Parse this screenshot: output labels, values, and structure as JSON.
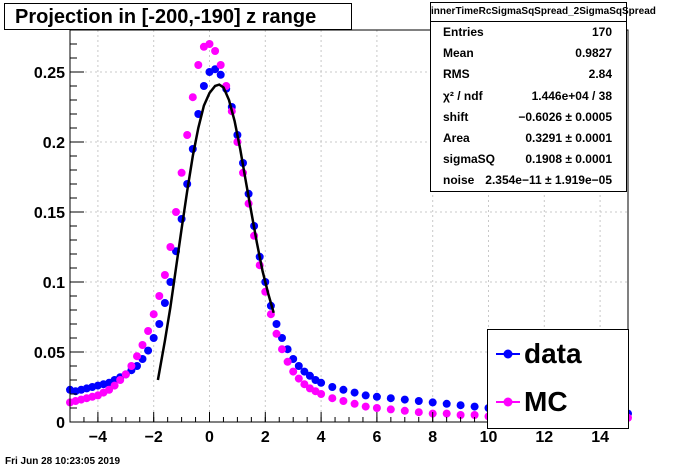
{
  "title": "Projection in [-200,-190] z range",
  "footer": "Fri Jun 28 10:23:05 2019",
  "stats": {
    "title": "innerTimeRcSigmaSqSpread_2SigmaSqSpread",
    "rows": [
      {
        "label": "Entries",
        "value": "170"
      },
      {
        "label": "Mean",
        "value": "0.9827"
      },
      {
        "label": "RMS",
        "value": "2.84"
      },
      {
        "label": "χ² / ndf",
        "value": "1.446e+04 / 38"
      },
      {
        "label": "shift",
        "value": "−0.6026 ± 0.0005"
      },
      {
        "label": "Area",
        "value": "0.3291 ± 0.0001"
      },
      {
        "label": "sigmaSQ",
        "value": "0.1908 ± 0.0001"
      },
      {
        "label": "noise",
        "value": "2.354e−11 ± 1.919e−05"
      }
    ]
  },
  "legend": [
    {
      "label": "data",
      "color": "#0000ff"
    },
    {
      "label": "MC",
      "color": "#ff00ff"
    }
  ],
  "chart_data": {
    "type": "scatter",
    "xlim": [
      -5,
      15
    ],
    "ylim": [
      0,
      0.28
    ],
    "x_ticks": [
      "−4",
      "−2",
      "0",
      "2",
      "4",
      "6",
      "8",
      "10",
      "12",
      "14"
    ],
    "y_ticks": [
      "0",
      "0.05",
      "0.1",
      "0.15",
      "0.2",
      "0.25"
    ],
    "grid": true,
    "series": [
      {
        "name": "data",
        "color": "#0000ff",
        "x": [
          -5.0,
          -4.8,
          -4.6,
          -4.4,
          -4.2,
          -4.0,
          -3.8,
          -3.6,
          -3.4,
          -3.2,
          -3.0,
          -2.8,
          -2.6,
          -2.4,
          -2.2,
          -2.0,
          -1.8,
          -1.6,
          -1.4,
          -1.2,
          -1.0,
          -0.8,
          -0.6,
          -0.4,
          -0.2,
          0.0,
          0.2,
          0.4,
          0.6,
          0.8,
          1.0,
          1.2,
          1.4,
          1.6,
          1.8,
          2.0,
          2.2,
          2.4,
          2.6,
          2.8,
          3.0,
          3.2,
          3.4,
          3.6,
          3.8,
          4.0,
          4.4,
          4.8,
          5.2,
          5.6,
          6.0,
          6.5,
          7.0,
          7.5,
          8.0,
          8.5,
          9.0,
          9.5,
          10.0,
          10.5,
          11.0,
          11.5,
          12.0,
          12.5,
          13.0,
          13.5,
          14.0,
          14.5,
          15.0
        ],
        "y": [
          0.023,
          0.022,
          0.023,
          0.024,
          0.025,
          0.026,
          0.027,
          0.028,
          0.03,
          0.032,
          0.034,
          0.037,
          0.04,
          0.045,
          0.051,
          0.06,
          0.07,
          0.085,
          0.1,
          0.122,
          0.145,
          0.17,
          0.195,
          0.22,
          0.24,
          0.25,
          0.252,
          0.248,
          0.238,
          0.225,
          0.205,
          0.185,
          0.163,
          0.14,
          0.118,
          0.1,
          0.083,
          0.07,
          0.06,
          0.052,
          0.045,
          0.04,
          0.036,
          0.033,
          0.03,
          0.028,
          0.025,
          0.023,
          0.021,
          0.019,
          0.018,
          0.017,
          0.016,
          0.015,
          0.014,
          0.013,
          0.012,
          0.011,
          0.01,
          0.01,
          0.01,
          0.009,
          0.009,
          0.008,
          0.008,
          0.008,
          0.007,
          0.007,
          0.006
        ]
      },
      {
        "name": "MC",
        "color": "#ff00ff",
        "x": [
          -5.0,
          -4.8,
          -4.6,
          -4.4,
          -4.2,
          -4.0,
          -3.8,
          -3.6,
          -3.4,
          -3.2,
          -3.0,
          -2.8,
          -2.6,
          -2.4,
          -2.2,
          -2.0,
          -1.8,
          -1.6,
          -1.4,
          -1.2,
          -1.0,
          -0.8,
          -0.6,
          -0.4,
          -0.2,
          0.0,
          0.2,
          0.4,
          0.6,
          0.8,
          1.0,
          1.2,
          1.4,
          1.6,
          1.8,
          2.0,
          2.2,
          2.4,
          2.6,
          2.8,
          3.0,
          3.2,
          3.4,
          3.6,
          3.8,
          4.0,
          4.4,
          4.8,
          5.2,
          5.6,
          6.0,
          6.5,
          7.0,
          7.5,
          8.0,
          8.5,
          9.0,
          9.5,
          10.0,
          10.5,
          11.0,
          11.5,
          12.0,
          12.5,
          13.0,
          13.5,
          14.0,
          14.5,
          15.0
        ],
        "y": [
          0.014,
          0.015,
          0.016,
          0.017,
          0.018,
          0.019,
          0.021,
          0.023,
          0.026,
          0.03,
          0.034,
          0.04,
          0.047,
          0.055,
          0.065,
          0.077,
          0.09,
          0.105,
          0.125,
          0.15,
          0.178,
          0.205,
          0.232,
          0.255,
          0.268,
          0.27,
          0.265,
          0.255,
          0.24,
          0.222,
          0.2,
          0.178,
          0.156,
          0.133,
          0.112,
          0.093,
          0.077,
          0.063,
          0.052,
          0.043,
          0.036,
          0.031,
          0.027,
          0.024,
          0.022,
          0.02,
          0.017,
          0.015,
          0.013,
          0.011,
          0.01,
          0.009,
          0.008,
          0.007,
          0.006,
          0.006,
          0.005,
          0.005,
          0.004,
          0.004,
          0.004,
          0.004,
          0.004,
          0.003,
          0.003,
          0.003,
          0.003,
          0.003,
          0.003
        ]
      },
      {
        "name": "",
        "type": "line",
        "color": "#000000",
        "x": [
          -1.85,
          -1.6,
          -1.4,
          -1.2,
          -1.0,
          -0.8,
          -0.6,
          -0.4,
          -0.2,
          0.0,
          0.2,
          0.35,
          0.5,
          0.7,
          0.9,
          1.1,
          1.3,
          1.5,
          1.7,
          1.9,
          2.1,
          2.3
        ],
        "y": [
          0.03,
          0.058,
          0.082,
          0.11,
          0.138,
          0.165,
          0.19,
          0.21,
          0.226,
          0.235,
          0.24,
          0.241,
          0.239,
          0.23,
          0.215,
          0.195,
          0.172,
          0.15,
          0.128,
          0.108,
          0.092,
          0.078
        ]
      }
    ]
  }
}
